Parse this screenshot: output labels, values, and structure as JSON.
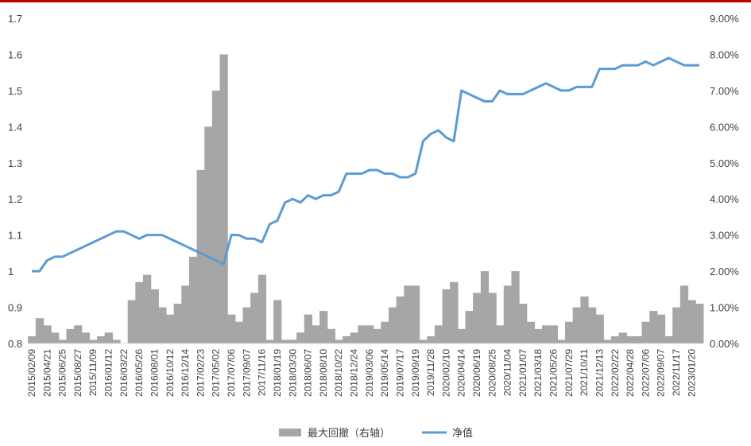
{
  "chart_data": {
    "type": "line",
    "title": "",
    "xlabel": "",
    "ylabel": "",
    "colors": {
      "bars": "#a6a6a6",
      "line": "#5b9bd5",
      "top_rule": "#c00000"
    },
    "y_left": {
      "ylim": [
        0.8,
        1.7
      ],
      "ticks": [
        "1.7",
        "1.6",
        "1.5",
        "1.4",
        "1.3",
        "1.2",
        "1.1",
        "1",
        "0.9",
        "0.8"
      ]
    },
    "y_right": {
      "ylim": [
        0,
        9
      ],
      "ticks": [
        "9.00%",
        "8.00%",
        "7.00%",
        "6.00%",
        "5.00%",
        "4.00%",
        "3.00%",
        "2.00%",
        "1.00%",
        "0.00%"
      ]
    },
    "x_ticks": [
      "2015/02/09",
      "2015/04/21",
      "2015/06/25",
      "2015/08/27",
      "2015/11/09",
      "2016/01/12",
      "2016/03/22",
      "2016/05/26",
      "2016/08/01",
      "2016/10/12",
      "2016/12/14",
      "2017/02/23",
      "2017/05/02",
      "2017/07/06",
      "2017/09/07",
      "2017/11/16",
      "2018/01/19",
      "2018/03/30",
      "2018/06/07",
      "2018/08/10",
      "2018/10/22",
      "2018/12/24",
      "2019/03/06",
      "2019/05/14",
      "2019/07/17",
      "2019/09/19",
      "2019/11/28",
      "2020/02/10",
      "2020/04/14",
      "2020/06/19",
      "2020/08/25",
      "2020/11/04",
      "2021/01/07",
      "2021/03/18",
      "2021/05/26",
      "2021/07/29",
      "2021/10/11",
      "2021/12/13",
      "2022/02/22",
      "2022/04/28",
      "2022/07/06",
      "2022/09/07",
      "2022/11/17",
      "2023/01/20"
    ],
    "legend": [
      {
        "name": "最大回撤（右轴）",
        "kind": "bar"
      },
      {
        "name": "净值",
        "kind": "line"
      }
    ],
    "series": [
      {
        "name": "净值",
        "axis": "left",
        "x": [
          0,
          0.5,
          1,
          1.5,
          2,
          2.5,
          3,
          3.5,
          4,
          4.5,
          5,
          5.5,
          6,
          6.5,
          7,
          7.5,
          8,
          8.5,
          9,
          9.5,
          10,
          10.5,
          11,
          11.5,
          12,
          12.5,
          13,
          13.5,
          14,
          14.5,
          15,
          15.5,
          16,
          16.5,
          17,
          17.5,
          18,
          18.5,
          19,
          19.5,
          20,
          20.5,
          21,
          21.5,
          22,
          22.5,
          23,
          23.5,
          24,
          24.5,
          25,
          25.5,
          26,
          26.5,
          27,
          27.5,
          28,
          28.5,
          29,
          29.5,
          30,
          30.5,
          31,
          31.5,
          32,
          32.5,
          33,
          33.5,
          34,
          34.5,
          35,
          35.5,
          36,
          36.5,
          37,
          37.5,
          38,
          38.5,
          39,
          39.5,
          40,
          40.5,
          41,
          41.5,
          42,
          42.5,
          43,
          43.5
        ],
        "values": [
          1.0,
          1.0,
          1.03,
          1.04,
          1.04,
          1.05,
          1.06,
          1.07,
          1.08,
          1.09,
          1.1,
          1.11,
          1.11,
          1.1,
          1.09,
          1.1,
          1.1,
          1.1,
          1.09,
          1.08,
          1.07,
          1.06,
          1.05,
          1.04,
          1.03,
          1.02,
          1.1,
          1.1,
          1.09,
          1.09,
          1.08,
          1.13,
          1.14,
          1.19,
          1.2,
          1.19,
          1.21,
          1.2,
          1.21,
          1.21,
          1.22,
          1.27,
          1.27,
          1.27,
          1.28,
          1.28,
          1.27,
          1.27,
          1.26,
          1.26,
          1.27,
          1.36,
          1.38,
          1.39,
          1.37,
          1.36,
          1.5,
          1.49,
          1.48,
          1.47,
          1.47,
          1.5,
          1.49,
          1.49,
          1.49,
          1.5,
          1.51,
          1.52,
          1.51,
          1.5,
          1.5,
          1.51,
          1.51,
          1.51,
          1.56,
          1.56,
          1.56,
          1.57,
          1.57,
          1.57,
          1.58,
          1.57,
          1.58,
          1.59,
          1.58,
          1.57,
          1.57,
          1.57
        ]
      },
      {
        "name": "最大回撤（右轴）",
        "axis": "right",
        "x": [
          0,
          0.5,
          1,
          1.5,
          2,
          2.5,
          3,
          3.5,
          4,
          4.5,
          5,
          5.5,
          6,
          6.5,
          7,
          7.5,
          8,
          8.5,
          9,
          9.5,
          10,
          10.5,
          11,
          11.5,
          12,
          12.5,
          13,
          13.5,
          14,
          14.5,
          15,
          15.5,
          16,
          16.5,
          17,
          17.5,
          18,
          18.5,
          19,
          19.5,
          20,
          20.5,
          21,
          21.5,
          22,
          22.5,
          23,
          23.5,
          24,
          24.5,
          25,
          25.5,
          26,
          26.5,
          27,
          27.5,
          28,
          28.5,
          29,
          29.5,
          30,
          30.5,
          31,
          31.5,
          32,
          32.5,
          33,
          33.5,
          34,
          34.5,
          35,
          35.5,
          36,
          36.5,
          37,
          37.5,
          38,
          38.5,
          39,
          39.5,
          40,
          40.5,
          41,
          41.5,
          42,
          42.5,
          43,
          43.5
        ],
        "values": [
          0.2,
          0.7,
          0.5,
          0.3,
          0.1,
          0.4,
          0.5,
          0.3,
          0.1,
          0.2,
          0.3,
          0.1,
          0.0,
          1.2,
          1.7,
          1.9,
          1.5,
          1.0,
          0.8,
          1.1,
          1.6,
          2.4,
          4.8,
          6.0,
          7.0,
          8.0,
          0.8,
          0.6,
          1.0,
          1.4,
          1.9,
          0.1,
          1.2,
          0.1,
          0.1,
          0.3,
          0.8,
          0.5,
          0.9,
          0.4,
          0.1,
          0.2,
          0.3,
          0.5,
          0.5,
          0.4,
          0.6,
          1.0,
          1.3,
          1.6,
          1.6,
          0.1,
          0.2,
          0.5,
          1.5,
          1.7,
          0.4,
          0.9,
          1.4,
          2.0,
          1.4,
          0.5,
          1.6,
          2.0,
          1.1,
          0.6,
          0.4,
          0.5,
          0.5,
          0.1,
          0.6,
          1.0,
          1.3,
          1.0,
          0.8,
          0.1,
          0.2,
          0.3,
          0.2,
          0.2,
          0.6,
          0.9,
          0.8,
          0.2,
          1.0,
          1.6,
          1.2,
          1.1
        ]
      }
    ]
  }
}
